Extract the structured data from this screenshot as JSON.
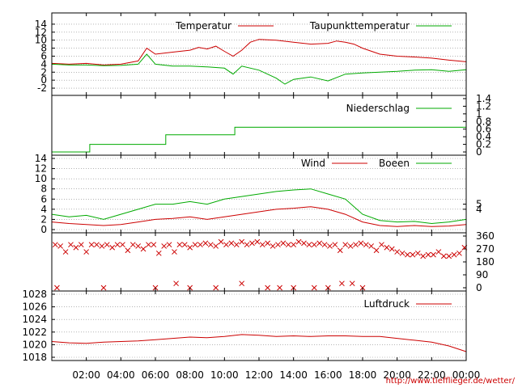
{
  "source_url": "http://www.tiefflieger.de/wetter/",
  "time_axis": {
    "labels": [
      "02:00",
      "04:00",
      "06:00",
      "08:00",
      "10:00",
      "12:00",
      "14:00",
      "16:00",
      "18:00",
      "20:00",
      "22:00",
      "00:00"
    ],
    "range_hours": [
      0,
      24
    ]
  },
  "colors": {
    "primary": "#cc0000",
    "secondary": "#00aa00",
    "frame": "#000000",
    "grid": "#888888"
  },
  "chart_data": [
    {
      "type": "line",
      "panel": "temperature",
      "x_range": [
        0,
        24
      ],
      "ylim": [
        -3,
        16
      ],
      "y_ticks": [
        "-2",
        "0",
        "2",
        "4",
        "6",
        "8",
        "10",
        "12",
        "14"
      ],
      "legend_position": "top",
      "grid": true,
      "series": [
        {
          "name": "Temperatur",
          "color": "#cc0000",
          "x": [
            0,
            1,
            2,
            3,
            4,
            5,
            5.5,
            6,
            7,
            8,
            8.5,
            9,
            9.5,
            10,
            10.5,
            11,
            11.5,
            12,
            13,
            14,
            15,
            16,
            16.5,
            17,
            17.5,
            18,
            19,
            20,
            21,
            22,
            23,
            24
          ],
          "y": [
            4.2,
            4.0,
            4.2,
            3.8,
            4.0,
            4.8,
            8.0,
            6.5,
            7.0,
            7.5,
            8.2,
            7.8,
            8.5,
            7.2,
            6.0,
            7.5,
            9.5,
            10.2,
            10.0,
            9.5,
            9.0,
            9.2,
            9.8,
            9.5,
            9.0,
            8.0,
            6.5,
            6.0,
            5.8,
            5.5,
            5.0,
            4.6
          ]
        },
        {
          "name": "Taupunkttemperatur",
          "color": "#00aa00",
          "x": [
            0,
            1,
            2,
            3,
            4,
            5,
            5.5,
            6,
            7,
            8,
            9,
            10,
            10.5,
            11,
            12,
            13,
            13.5,
            14,
            15,
            16,
            17,
            18,
            19,
            20,
            21,
            22,
            23,
            24
          ],
          "y": [
            4.0,
            3.8,
            3.8,
            3.6,
            3.7,
            4.0,
            6.5,
            4.0,
            3.5,
            3.5,
            3.3,
            3.0,
            1.5,
            3.5,
            2.5,
            0.5,
            -1.0,
            0.2,
            0.8,
            -0.2,
            1.5,
            1.8,
            2.0,
            2.2,
            2.5,
            2.6,
            2.2,
            2.6
          ]
        }
      ]
    },
    {
      "type": "line",
      "panel": "precipitation",
      "x_range": [
        0,
        24
      ],
      "ylim": [
        0,
        1.4
      ],
      "y_ticks_right": [
        "0",
        "0.2",
        "0.4",
        "0.6",
        "0.8",
        "1",
        "1.2",
        "1.4"
      ],
      "legend_position": "top-right",
      "grid": false,
      "series": [
        {
          "name": "Niederschlag",
          "color": "#00aa00",
          "x": [
            0,
            2.2,
            2.2,
            6.6,
            6.6,
            10.6,
            10.6,
            24
          ],
          "y": [
            0,
            0,
            0.2,
            0.2,
            0.45,
            0.45,
            0.65,
            0.65
          ]
        }
      ]
    },
    {
      "type": "line",
      "panel": "wind",
      "x_range": [
        0,
        24
      ],
      "ylim": [
        0,
        14
      ],
      "y_ticks": [
        "0",
        "2",
        "4",
        "6",
        "8",
        "10",
        "12",
        "14"
      ],
      "y_ticks_right": [
        "4",
        "5"
      ],
      "legend_position": "top",
      "grid": true,
      "series": [
        {
          "name": "Wind",
          "color": "#cc0000",
          "x": [
            0,
            1,
            2,
            3,
            4,
            5,
            6,
            7,
            8,
            9,
            10,
            11,
            12,
            13,
            14,
            15,
            16,
            17,
            18,
            19,
            20,
            21,
            22,
            23,
            24
          ],
          "y": [
            1.5,
            1.2,
            1.0,
            0.8,
            1.0,
            1.5,
            2.0,
            2.2,
            2.5,
            2.0,
            2.5,
            3.0,
            3.5,
            4.0,
            4.2,
            4.5,
            4.0,
            3.0,
            1.5,
            0.8,
            0.6,
            0.8,
            0.6,
            0.7,
            1.0
          ]
        },
        {
          "name": "Boeen",
          "color": "#00aa00",
          "x": [
            0,
            1,
            2,
            3,
            4,
            5,
            6,
            7,
            8,
            9,
            10,
            11,
            12,
            13,
            14,
            15,
            16,
            17,
            18,
            19,
            20,
            21,
            22,
            23,
            24
          ],
          "y": [
            3.0,
            2.5,
            2.8,
            2.0,
            3.0,
            4.0,
            5.0,
            5.0,
            5.5,
            5.0,
            6.0,
            6.5,
            7.0,
            7.5,
            7.8,
            8.0,
            7.0,
            6.0,
            3.0,
            1.8,
            1.5,
            1.6,
            1.2,
            1.5,
            2.0
          ]
        }
      ]
    },
    {
      "type": "scatter",
      "panel": "wind_direction",
      "x_range": [
        0,
        24
      ],
      "ylim": [
        0,
        360
      ],
      "y_ticks_right": [
        "0",
        "90",
        "180",
        "270",
        "360"
      ],
      "series": [
        {
          "color": "#cc0000",
          "marker": "x",
          "x": [
            0.2,
            0.5,
            0.8,
            1.1,
            1.4,
            1.7,
            2.0,
            2.3,
            2.6,
            2.9,
            3.2,
            3.5,
            3.8,
            4.1,
            4.4,
            4.7,
            5.0,
            5.3,
            5.6,
            5.9,
            6.2,
            6.5,
            6.8,
            7.1,
            7.4,
            7.7,
            8.0,
            8.3,
            8.6,
            8.9,
            9.2,
            9.5,
            9.8,
            10.1,
            10.4,
            10.7,
            11.0,
            11.3,
            11.6,
            11.9,
            12.2,
            12.5,
            12.8,
            13.1,
            13.4,
            13.7,
            14.0,
            14.3,
            14.6,
            14.9,
            15.2,
            15.5,
            15.8,
            16.1,
            16.4,
            16.7,
            17.0,
            17.3,
            17.6,
            17.9,
            18.2,
            18.5,
            18.8,
            19.1,
            19.4,
            19.7,
            20.0,
            20.3,
            20.6,
            20.9,
            21.2,
            21.5,
            21.8,
            22.1,
            22.4,
            22.7,
            23.0,
            23.3,
            23.6,
            23.9,
            0.3,
            3.0,
            6.0,
            7.2,
            8.0,
            9.5,
            11.0,
            12.5,
            13.2,
            14.0,
            15.2,
            16.0,
            16.8,
            17.4,
            18.0
          ],
          "y": [
            300,
            290,
            250,
            300,
            280,
            300,
            250,
            300,
            300,
            290,
            300,
            280,
            300,
            300,
            260,
            300,
            290,
            270,
            300,
            300,
            240,
            290,
            300,
            250,
            300,
            300,
            280,
            300,
            300,
            310,
            300,
            290,
            320,
            300,
            310,
            300,
            320,
            300,
            310,
            320,
            300,
            310,
            290,
            300,
            310,
            300,
            300,
            320,
            310,
            300,
            300,
            310,
            300,
            290,
            300,
            260,
            300,
            290,
            300,
            310,
            300,
            290,
            260,
            300,
            280,
            270,
            250,
            240,
            230,
            230,
            240,
            220,
            230,
            230,
            250,
            220,
            220,
            230,
            240,
            280,
            0,
            0,
            0,
            30,
            0,
            0,
            30,
            0,
            0,
            0,
            0,
            0,
            30,
            30,
            0
          ]
        }
      ]
    },
    {
      "type": "line",
      "panel": "pressure",
      "x_range": [
        0,
        24
      ],
      "ylim": [
        1018,
        1028
      ],
      "y_ticks": [
        "1018",
        "1020",
        "1022",
        "1024",
        "1026",
        "1028"
      ],
      "legend_position": "top-right",
      "grid": true,
      "series": [
        {
          "name": "Luftdruck",
          "color": "#cc0000",
          "x": [
            0,
            1,
            2,
            3,
            4,
            5,
            6,
            7,
            8,
            9,
            10,
            11,
            12,
            13,
            14,
            15,
            16,
            17,
            18,
            19,
            20,
            21,
            22,
            23,
            24
          ],
          "y": [
            1020.5,
            1020.3,
            1020.2,
            1020.4,
            1020.5,
            1020.6,
            1020.8,
            1021.0,
            1021.2,
            1021.1,
            1021.3,
            1021.6,
            1021.5,
            1021.3,
            1021.4,
            1021.3,
            1021.4,
            1021.4,
            1021.3,
            1021.3,
            1021.0,
            1020.7,
            1020.4,
            1019.8,
            1018.9
          ]
        }
      ]
    }
  ]
}
